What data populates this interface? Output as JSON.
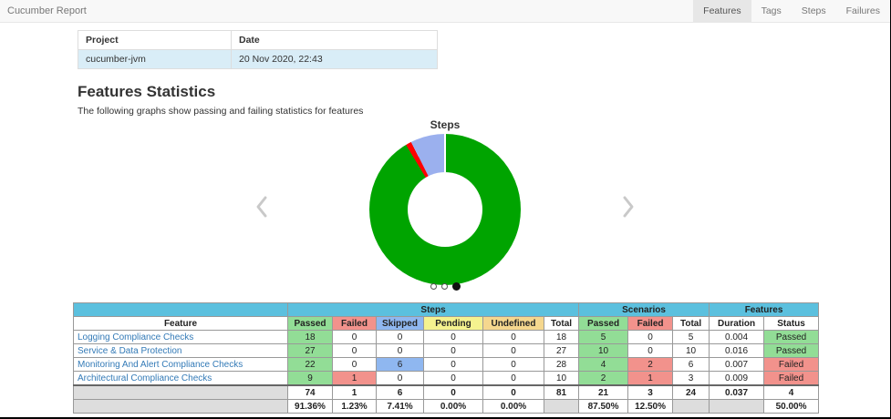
{
  "navbar": {
    "brand": "Cucumber Report",
    "items": [
      {
        "label": "Features",
        "active": true
      },
      {
        "label": "Tags",
        "active": false
      },
      {
        "label": "Steps",
        "active": false
      },
      {
        "label": "Failures",
        "active": false
      }
    ]
  },
  "project_table": {
    "headers": [
      "Project",
      "Date"
    ],
    "rows": [
      [
        "cucumber-jvm",
        "20 Nov 2020, 22:43"
      ]
    ]
  },
  "stats_section": {
    "title": "Features Statistics",
    "subtitle": "The following graphs show passing and failing statistics for features"
  },
  "chart_data": {
    "type": "pie",
    "donut": true,
    "title": "Steps",
    "labels": [
      "Passed",
      "Failed",
      "Skipped"
    ],
    "values": [
      74,
      1,
      6
    ],
    "percentages": [
      91.36,
      1.23,
      7.41
    ],
    "colors": [
      "#00a400",
      "#ff0000",
      "#9bb0ee"
    ],
    "legend_position": "none"
  },
  "carousel": {
    "dot_count": 3,
    "active_dot": 2
  },
  "report_table": {
    "group_headers": [
      {
        "label": "",
        "span": 1
      },
      {
        "label": "Steps",
        "span": 6
      },
      {
        "label": "Scenarios",
        "span": 3
      },
      {
        "label": "Features",
        "span": 2
      }
    ],
    "columns": [
      "Feature",
      "Passed",
      "Failed",
      "Skipped",
      "Pending",
      "Undefined",
      "Total",
      "Passed",
      "Failed",
      "Total",
      "Duration",
      "Status"
    ],
    "column_colors": [
      "",
      "green",
      "red",
      "blue",
      "yellow",
      "orange",
      "",
      "green",
      "red",
      "",
      "",
      ""
    ],
    "rows": [
      {
        "feature": "Logging Compliance Checks",
        "cells": [
          "18",
          "0",
          "0",
          "0",
          "0",
          "18",
          "5",
          "0",
          "5",
          "0.004",
          "Passed"
        ]
      },
      {
        "feature": "Service & Data Protection",
        "cells": [
          "27",
          "0",
          "0",
          "0",
          "0",
          "27",
          "10",
          "0",
          "10",
          "0.016",
          "Passed"
        ]
      },
      {
        "feature": "Monitoring And Alert Compliance Checks",
        "cells": [
          "22",
          "0",
          "6",
          "0",
          "0",
          "28",
          "4",
          "2",
          "6",
          "0.007",
          "Failed"
        ]
      },
      {
        "feature": "Architectural Compliance Checks",
        "cells": [
          "9",
          "1",
          "0",
          "0",
          "0",
          "10",
          "2",
          "1",
          "3",
          "0.009",
          "Failed"
        ]
      }
    ],
    "totals": [
      "",
      "74",
      "1",
      "6",
      "0",
      "0",
      "81",
      "21",
      "3",
      "24",
      "0.037",
      "4"
    ],
    "percentages": [
      "",
      "91.36%",
      "1.23%",
      "7.41%",
      "0.00%",
      "0.00%",
      "",
      "87.50%",
      "12.50%",
      "",
      "",
      "50.00%"
    ]
  }
}
